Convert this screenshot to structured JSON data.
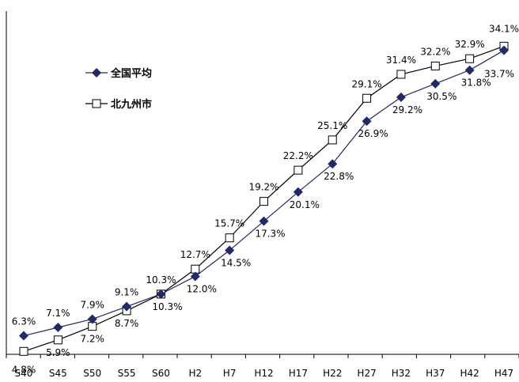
{
  "chart_data": {
    "type": "line",
    "categories": [
      "S40",
      "S45",
      "S50",
      "S55",
      "S60",
      "H2",
      "H7",
      "H12",
      "H17",
      "H22",
      "H27",
      "H32",
      "H37",
      "H42",
      "H47"
    ],
    "series": [
      {
        "name": "全国平均",
        "marker": "diamond",
        "color": "#1f2a6b",
        "values": [
          6.3,
          7.1,
          7.9,
          9.1,
          10.3,
          12.0,
          14.5,
          17.3,
          20.1,
          22.8,
          26.9,
          29.2,
          30.5,
          31.8,
          33.7
        ],
        "labels": [
          "6.3%",
          "7.1%",
          "7.9%",
          "9.1%",
          "10.3%",
          "12.0%",
          "14.5%",
          "17.3%",
          "20.1%",
          "22.8%",
          "26.9%",
          "29.2%",
          "30.5%",
          "31.8%",
          "33.7%"
        ]
      },
      {
        "name": "北九州市",
        "marker": "square",
        "color": "#000000",
        "values": [
          4.8,
          5.9,
          7.2,
          8.7,
          10.3,
          12.7,
          15.7,
          19.2,
          22.2,
          25.1,
          29.1,
          31.4,
          32.2,
          32.9,
          34.1
        ],
        "labels": [
          "4.8%",
          "5.9%",
          "7.2%",
          "8.7%",
          "10.3%",
          "12.7%",
          "15.7%",
          "19.2%",
          "22.2%",
          "25.1%",
          "29.1%",
          "31.4%",
          "32.2%",
          "32.9%",
          "34.1%"
        ]
      }
    ],
    "ylim": [
      0,
      36
    ],
    "grid": false,
    "legend": "top-left"
  }
}
